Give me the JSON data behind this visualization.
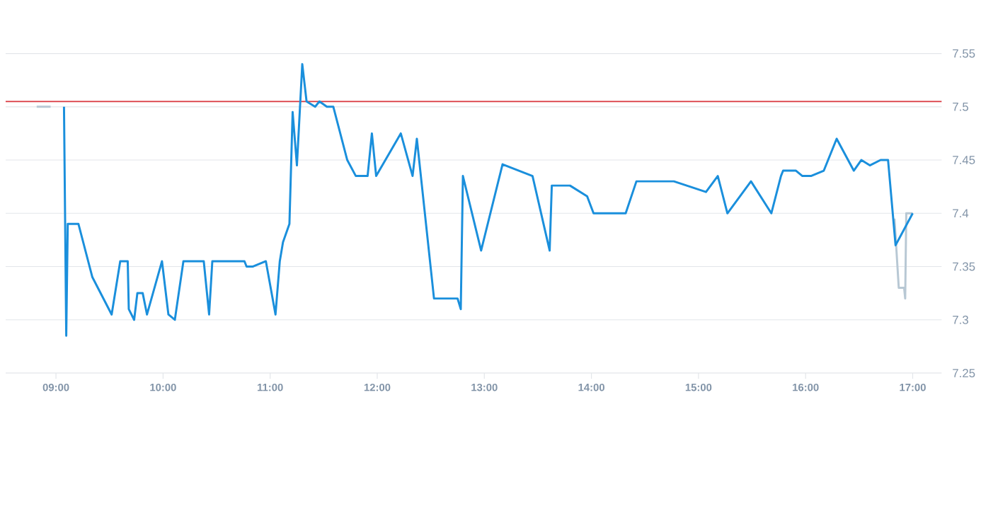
{
  "chart_data": {
    "type": "line",
    "xlim": [
      8.53,
      17.27
    ],
    "ylim": [
      7.25,
      7.55
    ],
    "xticks": [
      {
        "value": 9,
        "label": "09:00"
      },
      {
        "value": 10,
        "label": "10:00"
      },
      {
        "value": 11,
        "label": "11:00"
      },
      {
        "value": 12,
        "label": "12:00"
      },
      {
        "value": 13,
        "label": "13:00"
      },
      {
        "value": 14,
        "label": "14:00"
      },
      {
        "value": 15,
        "label": "15:00"
      },
      {
        "value": 16,
        "label": "16:00"
      },
      {
        "value": 17,
        "label": "17:00"
      }
    ],
    "yticks": [
      7.25,
      7.3,
      7.35,
      7.4,
      7.45,
      7.5,
      7.55
    ],
    "grid": "y",
    "ref_lines": [
      {
        "axis": "y",
        "value": 7.505,
        "color": "#d9363e"
      }
    ],
    "series": [
      {
        "color": "#b8c8d4",
        "x": [
          8.82,
          8.95,
          8.96,
          16.83,
          16.87,
          16.92,
          16.93,
          16.94,
          17.0
        ],
        "values": [
          7.5,
          7.5,
          null,
          7.395,
          7.33,
          7.33,
          7.32,
          7.4,
          7.4
        ]
      },
      {
        "color": "#1a8fdc",
        "x": [
          9.075,
          9.096,
          9.11,
          9.21,
          9.34,
          9.52,
          9.6,
          9.67,
          9.68,
          9.73,
          9.76,
          9.81,
          9.85,
          9.99,
          10.05,
          10.11,
          10.19,
          10.38,
          10.43,
          10.46,
          10.76,
          10.78,
          10.84,
          10.96,
          11.05,
          11.09,
          11.12,
          11.18,
          11.21,
          11.25,
          11.3,
          11.34,
          11.42,
          11.46,
          11.53,
          11.59,
          11.72,
          11.8,
          11.91,
          11.95,
          11.99,
          12.22,
          12.33,
          12.37,
          12.53,
          12.75,
          12.78,
          12.8,
          12.97,
          13.17,
          13.45,
          13.61,
          13.63,
          13.8,
          13.96,
          14.02,
          14.32,
          14.42,
          14.77,
          15.07,
          15.18,
          15.27,
          15.49,
          15.68,
          15.77,
          15.79,
          15.91,
          15.97,
          16.05,
          16.17,
          16.29,
          16.45,
          16.52,
          16.6,
          16.7,
          16.77,
          16.84,
          17.0
        ],
        "values": [
          7.5,
          7.285,
          7.39,
          7.39,
          7.34,
          7.305,
          7.355,
          7.355,
          7.31,
          7.3,
          7.325,
          7.325,
          7.305,
          7.355,
          7.305,
          7.3,
          7.355,
          7.355,
          7.305,
          7.355,
          7.355,
          7.35,
          7.35,
          7.355,
          7.305,
          7.355,
          7.373,
          7.39,
          7.495,
          7.445,
          7.54,
          7.505,
          7.5,
          7.505,
          7.5,
          7.5,
          7.45,
          7.435,
          7.435,
          7.475,
          7.435,
          7.475,
          7.435,
          7.47,
          7.32,
          7.32,
          7.31,
          7.435,
          7.365,
          7.446,
          7.435,
          7.365,
          7.426,
          7.426,
          7.416,
          7.4,
          7.4,
          7.43,
          7.43,
          7.42,
          7.435,
          7.4,
          7.43,
          7.4,
          7.435,
          7.44,
          7.44,
          7.435,
          7.435,
          7.44,
          7.47,
          7.44,
          7.45,
          7.445,
          7.45,
          7.45,
          7.37,
          7.4
        ]
      }
    ]
  }
}
